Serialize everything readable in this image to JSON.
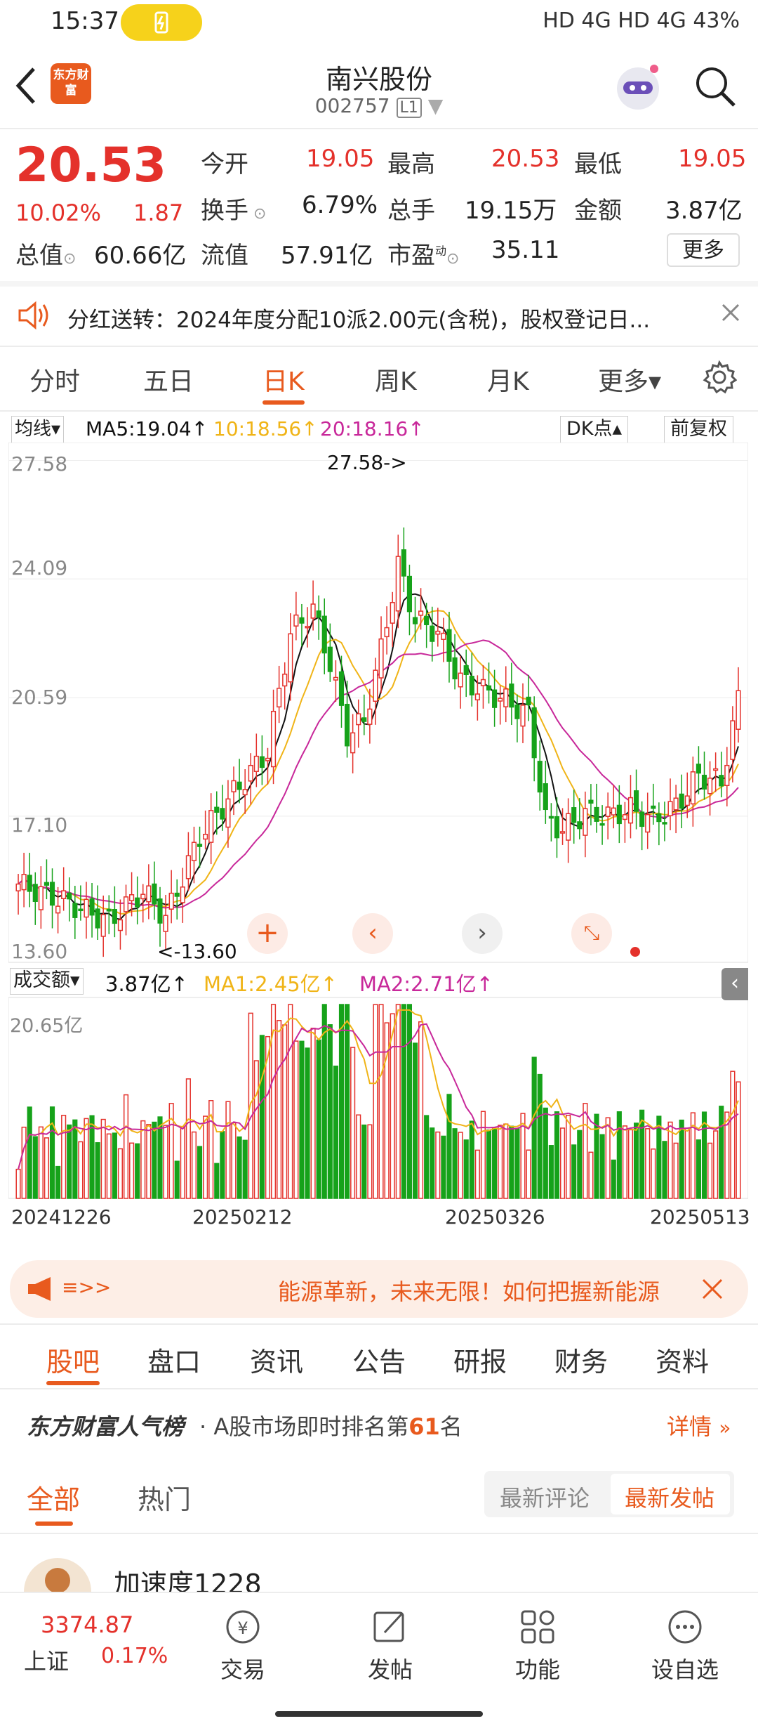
{
  "status_bar": {
    "time": "15:37",
    "right": "HD 4G HD 4G 43%"
  },
  "header": {
    "title": "南兴股份",
    "code": "002757",
    "level": "L1",
    "logo_text": "东方财富"
  },
  "quote": {
    "price": "20.53",
    "change_pct": "10.02%",
    "change": "1.87",
    "open_label": "今开",
    "open": "19.05",
    "high_label": "最高",
    "high": "20.53",
    "low_label": "最低",
    "low": "19.05",
    "turnover_label": "换手",
    "turnover": "6.79%",
    "volume_label": "总手",
    "volume": "19.15万",
    "amount_label": "金额",
    "amount": "3.87亿",
    "mktcap_label": "总值",
    "mktcap": "60.66亿",
    "float_label": "流值",
    "float": "57.91亿",
    "pe_label": "市盈",
    "pe_sup": "动",
    "pe": "35.11",
    "more_button": "更多"
  },
  "notice": {
    "text": "分红送转：2024年度分配10派2.00元(含税)，股权登记日..."
  },
  "kline_tabs": [
    {
      "label": "分时"
    },
    {
      "label": "五日"
    },
    {
      "label": "日K"
    },
    {
      "label": "周K"
    },
    {
      "label": "月K"
    },
    {
      "label": "更多▾"
    }
  ],
  "chart_toolbar": {
    "ma_select": "均线▾",
    "ma5": "MA5:19.04↑",
    "ma10": "10:18.56↑",
    "ma20": "20:18.16↑",
    "dk_button": "DK点▴",
    "adjust_button": "前复权"
  },
  "vol_toolbar": {
    "select": "成交额▾",
    "value": "3.87亿↑",
    "ma1": "MA1:2.45亿↑",
    "ma2": "MA2:2.71亿↑"
  },
  "chart_data": {
    "type": "candlestick",
    "price_ticks": [
      "27.58",
      "24.09",
      "20.59",
      "17.10",
      "13.60"
    ],
    "ylim": [
      13.6,
      27.58
    ],
    "max_label": "27.58->",
    "min_label": "<-13.60",
    "volume_max_label": "20.65亿",
    "date_ticks": [
      "20241226",
      "20250212",
      "20250326",
      "20250513"
    ],
    "colors": {
      "up": "#e4312b",
      "down": "#16a21a",
      "ma5": "#111111",
      "ma10": "#f0b417",
      "ma20": "#c8289a"
    }
  },
  "banner": {
    "arrow": "≡>>",
    "text": "能源革新，未来无限！如何把握新能源"
  },
  "bottom_tabs": [
    {
      "label": "股吧"
    },
    {
      "label": "盘口"
    },
    {
      "label": "资讯"
    },
    {
      "label": "公告"
    },
    {
      "label": "研报"
    },
    {
      "label": "财务"
    },
    {
      "label": "资料"
    }
  ],
  "popularity": {
    "brand": "东方财富人气榜",
    "prefix": "· A股市场即时排名第",
    "rank": "61",
    "suffix": "名",
    "detail": "详情"
  },
  "filter_tabs": {
    "all": "全部",
    "hot": "热门",
    "latest_comment": "最新评论",
    "latest_post": "最新发帖"
  },
  "post": {
    "username": "加速度1228"
  },
  "bottom_nav": {
    "index_value": "3374.87",
    "index_name": "上证",
    "index_pct": "0.17%",
    "trade": "交易",
    "post": "发帖",
    "functions": "功能",
    "watchlist": "设自选"
  }
}
